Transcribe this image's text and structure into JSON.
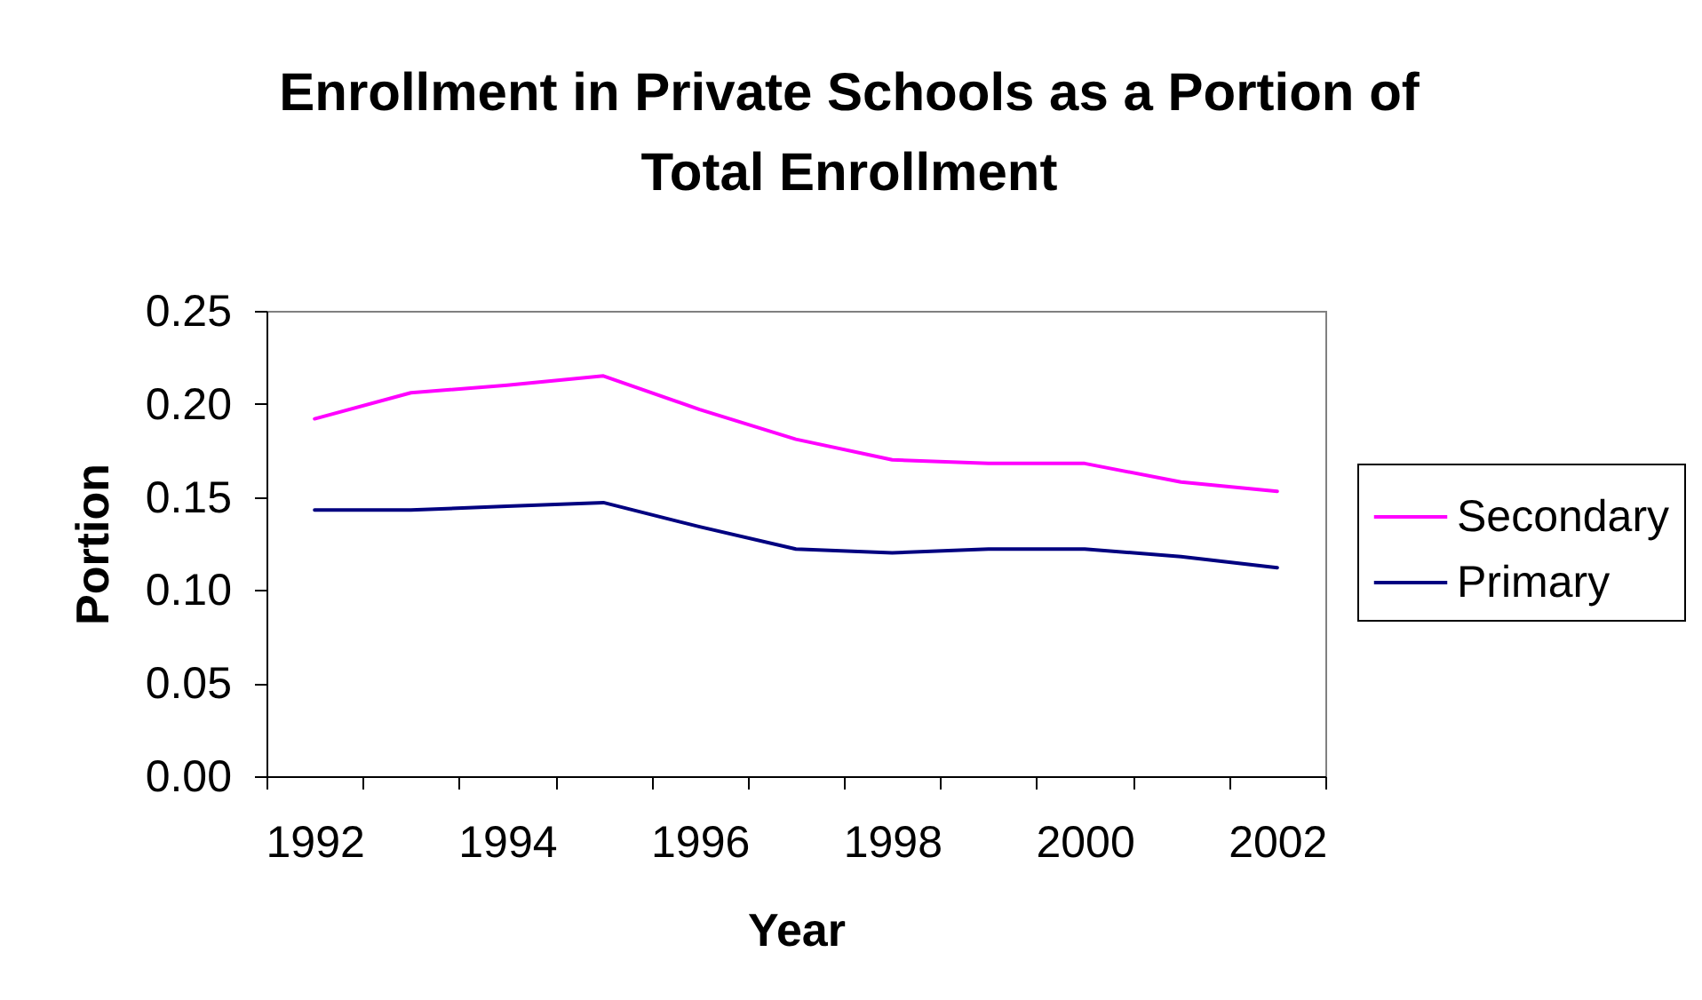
{
  "chart_data": {
    "type": "line",
    "title": "Enrollment in Private Schools as a Portion of Total Enrollment",
    "xlabel": "Year",
    "ylabel": "Portion",
    "categories": [
      "1992",
      null,
      "1994",
      null,
      "1996",
      null,
      "1998",
      null,
      "2000",
      null,
      "2002"
    ],
    "series": [
      {
        "name": "Secondary",
        "color": "#ff00ff",
        "values": [
          0.192,
          0.206,
          0.21,
          0.215,
          0.197,
          0.181,
          0.17,
          0.168,
          0.168,
          0.158,
          0.153
        ]
      },
      {
        "name": "Primary",
        "color": "#000080",
        "values": [
          0.143,
          0.143,
          0.145,
          0.147,
          0.134,
          0.122,
          0.12,
          0.122,
          0.122,
          0.118,
          0.112
        ]
      }
    ],
    "ylim": [
      0,
      0.25
    ],
    "yticks": [
      {
        "value": 0,
        "label": "0.00"
      },
      {
        "value": 0.05,
        "label": "0.05"
      },
      {
        "value": 0.1,
        "label": "0.10"
      },
      {
        "value": 0.15,
        "label": "0.15"
      },
      {
        "value": 0.2,
        "label": "0.20"
      },
      {
        "value": 0.25,
        "label": "0.25"
      }
    ],
    "legend": "right"
  }
}
